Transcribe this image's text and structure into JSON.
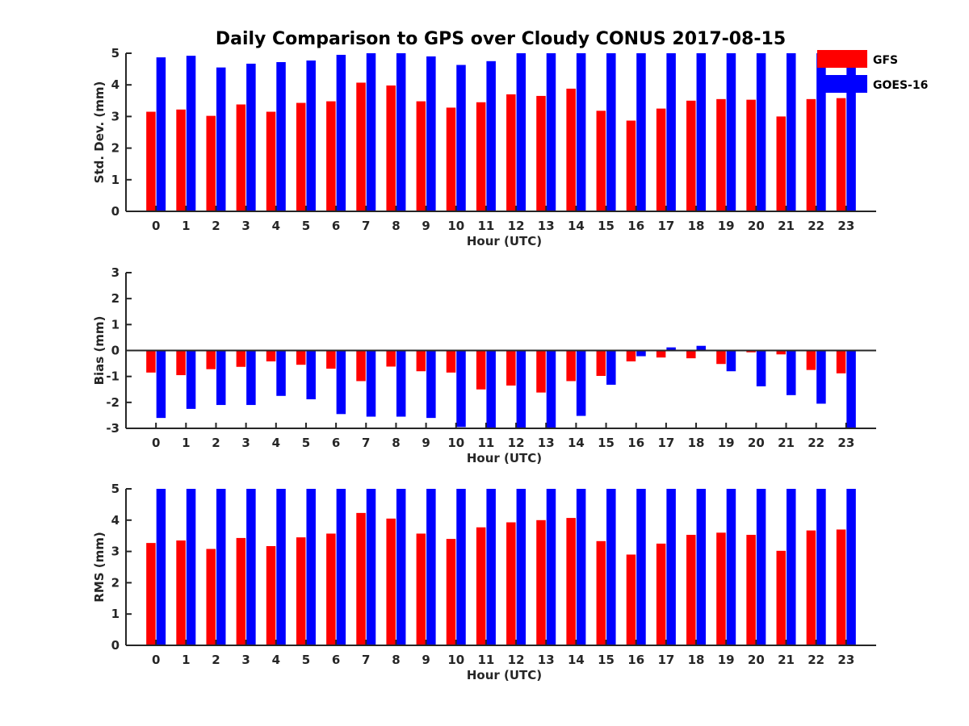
{
  "title": "Daily Comparison to GPS over Cloudy CONUS 2017-08-15",
  "legend": {
    "items": [
      {
        "label": "GFS",
        "color": "#ff0000"
      },
      {
        "label": "GOES-16",
        "color": "#0000ff"
      }
    ]
  },
  "chart_data": [
    {
      "type": "bar",
      "xlabel": "Hour (UTC)",
      "ylabel": "Std. Dev. (mm)",
      "ylim": [
        0,
        5
      ],
      "yticks": [
        0,
        1,
        2,
        3,
        4,
        5
      ],
      "categories": [
        "0",
        "1",
        "2",
        "3",
        "4",
        "5",
        "6",
        "7",
        "8",
        "9",
        "10",
        "11",
        "12",
        "13",
        "14",
        "15",
        "16",
        "17",
        "18",
        "19",
        "20",
        "21",
        "22",
        "23"
      ],
      "series": [
        {
          "name": "GFS",
          "color": "#ff0000",
          "values": [
            3.15,
            3.22,
            3.02,
            3.38,
            3.15,
            3.43,
            3.48,
            4.07,
            3.98,
            3.48,
            3.28,
            3.45,
            3.7,
            3.65,
            3.88,
            3.18,
            2.87,
            3.25,
            3.5,
            3.55,
            3.53,
            3.0,
            3.55,
            3.58
          ]
        },
        {
          "name": "GOES-16",
          "color": "#0000ff",
          "values": [
            4.87,
            4.92,
            4.55,
            4.67,
            4.72,
            4.77,
            4.95,
            5.0,
            5.0,
            4.9,
            4.63,
            4.75,
            5.0,
            5.0,
            5.0,
            5.0,
            5.0,
            5.0,
            5.0,
            5.0,
            5.0,
            5.0,
            5.0,
            5.0
          ]
        }
      ]
    },
    {
      "type": "bar",
      "xlabel": "Hour (UTC)",
      "ylabel": "Bias (mm)",
      "ylim": [
        -3,
        3
      ],
      "yticks": [
        -3,
        -2,
        -1,
        0,
        1,
        2,
        3
      ],
      "zero_line": true,
      "categories": [
        "0",
        "1",
        "2",
        "3",
        "4",
        "5",
        "6",
        "7",
        "8",
        "9",
        "10",
        "11",
        "12",
        "13",
        "14",
        "15",
        "16",
        "17",
        "18",
        "19",
        "20",
        "21",
        "22",
        "23"
      ],
      "series": [
        {
          "name": "GFS",
          "color": "#ff0000",
          "values": [
            -0.85,
            -0.95,
            -0.72,
            -0.63,
            -0.42,
            -0.55,
            -0.7,
            -1.18,
            -0.62,
            -0.8,
            -0.85,
            -1.5,
            -1.35,
            -1.62,
            -1.18,
            -0.98,
            -0.42,
            -0.27,
            -0.3,
            -0.52,
            -0.07,
            -0.15,
            -0.75,
            -0.88
          ]
        },
        {
          "name": "GOES-16",
          "color": "#0000ff",
          "values": [
            -2.6,
            -2.25,
            -2.1,
            -2.1,
            -1.75,
            -1.88,
            -2.45,
            -2.55,
            -2.55,
            -2.6,
            -2.95,
            -3.0,
            -3.0,
            -3.0,
            -2.52,
            -1.32,
            -0.22,
            0.12,
            0.18,
            -0.8,
            -1.38,
            -1.72,
            -2.05,
            -3.0
          ]
        }
      ]
    },
    {
      "type": "bar",
      "xlabel": "Hour (UTC)",
      "ylabel": "RMS (mm)",
      "ylim": [
        0,
        5
      ],
      "yticks": [
        0,
        1,
        2,
        3,
        4,
        5
      ],
      "categories": [
        "0",
        "1",
        "2",
        "3",
        "4",
        "5",
        "6",
        "7",
        "8",
        "9",
        "10",
        "11",
        "12",
        "13",
        "14",
        "15",
        "16",
        "17",
        "18",
        "19",
        "20",
        "21",
        "22",
        "23"
      ],
      "series": [
        {
          "name": "GFS",
          "color": "#ff0000",
          "values": [
            3.27,
            3.35,
            3.08,
            3.43,
            3.17,
            3.45,
            3.57,
            4.23,
            4.05,
            3.57,
            3.4,
            3.77,
            3.93,
            4.0,
            4.07,
            3.33,
            2.9,
            3.25,
            3.53,
            3.6,
            3.53,
            3.02,
            3.67,
            3.7
          ]
        },
        {
          "name": "GOES-16",
          "color": "#0000ff",
          "values": [
            5.0,
            5.0,
            5.0,
            5.0,
            5.0,
            5.0,
            5.0,
            5.0,
            5.0,
            5.0,
            5.0,
            5.0,
            5.0,
            5.0,
            5.0,
            5.0,
            5.0,
            5.0,
            5.0,
            5.0,
            5.0,
            5.0,
            5.0,
            5.0
          ]
        }
      ]
    }
  ]
}
